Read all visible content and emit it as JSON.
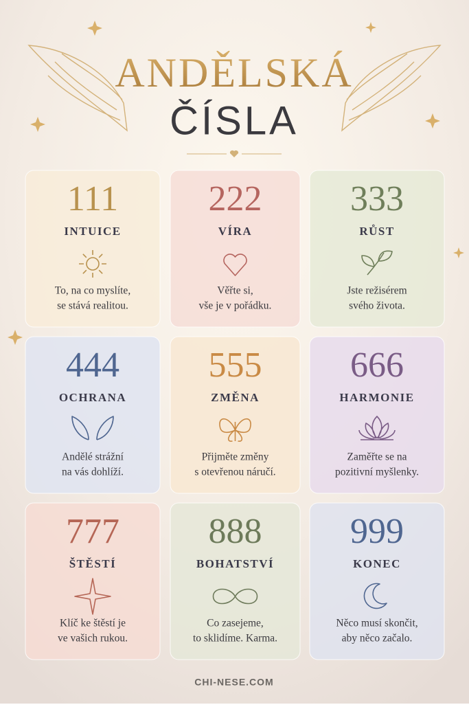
{
  "header": {
    "title_lines": [
      "ANDĚLSKÁ",
      "ČÍSLA"
    ]
  },
  "cards": [
    {
      "number": 111,
      "name": "INTUICE",
      "text": [
        "To, na co myslíte,",
        "se stává realitou."
      ],
      "color": "#b8924e",
      "background": "#f8ecd9"
    },
    {
      "number": 222,
      "name": "VÍRA",
      "text": [
        "Věřte si,",
        "vše je v pořádku."
      ],
      "color": "#b5655f",
      "background": "#f6ddd7"
    },
    {
      "number": 333,
      "name": "RŮST",
      "text": [
        "Jste režisérem",
        "svého života."
      ],
      "color": "#6f7f5a",
      "background": "#e6ead7"
    },
    {
      "number": 444,
      "name": "OCHRANA",
      "text": [
        "Andělé strážní",
        "na vás dohlíží."
      ],
      "color": "#4f6690",
      "background": "#dfe4f1"
    },
    {
      "number": 555,
      "name": "ZMĚNA",
      "text": [
        "Přijměte změny",
        "s otevřenou náručí."
      ],
      "color": "#c98a45",
      "background": "#f8e8d2"
    },
    {
      "number": 666,
      "name": "HARMONIE",
      "text": [
        "Zaměřte se na",
        "pozitivní myšlenky."
      ],
      "color": "#7a5c86",
      "background": "#e7dcec"
    },
    {
      "number": 777,
      "name": "ŠTĚSTÍ",
      "text": [
        "Klíč ke štěstí je",
        "ve vašich rukou."
      ],
      "color": "#b56656",
      "background": "#f6dcd4"
    },
    {
      "number": 888,
      "name": "BOHATSTVÍ",
      "text": [
        "Co zasejeme,",
        "to sklidíme. Karma."
      ],
      "color": "#6d7a5a",
      "background": "#e5e8d8"
    },
    {
      "number": 999,
      "name": "KONEC",
      "text": [
        "Něco musí skončit,",
        "aby něco začalo."
      ],
      "color": "#4f6690",
      "background": "#dfe3ef"
    }
  ],
  "footer": {
    "site": "CHI-NESE.COM"
  }
}
